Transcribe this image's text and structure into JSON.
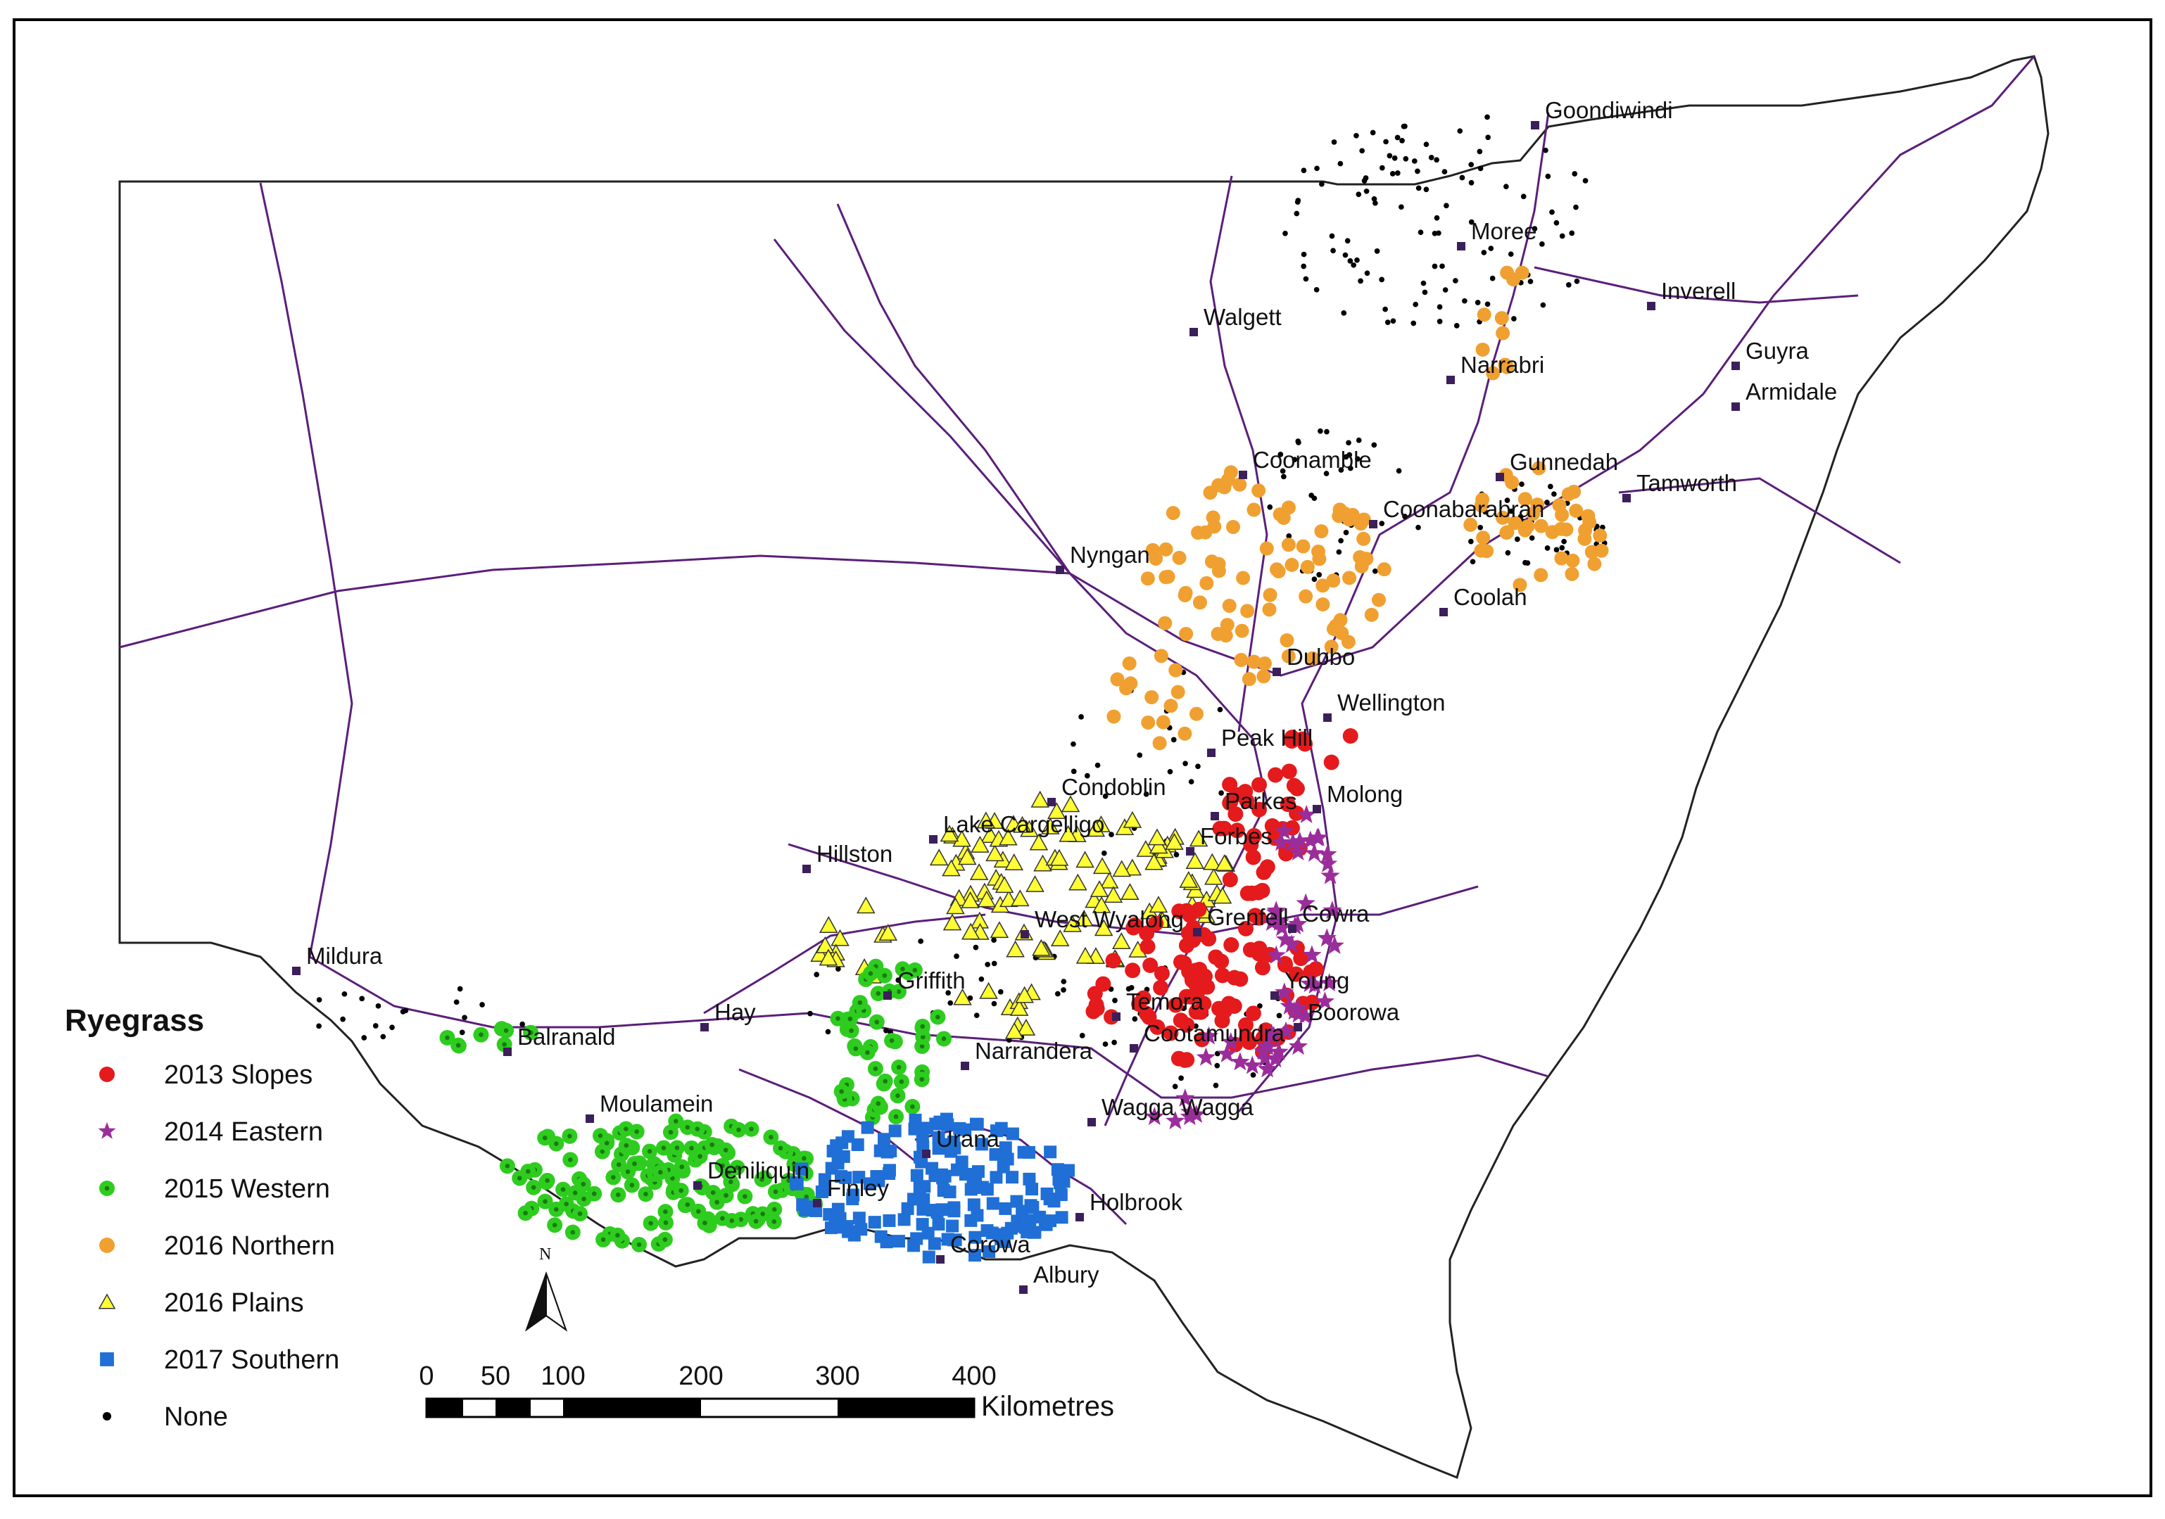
{
  "legend": {
    "title": "Ryegrass",
    "items": [
      {
        "label": "2013 Slopes",
        "symbol": "circle",
        "color": "#e41a1c"
      },
      {
        "label": "2014 Eastern",
        "symbol": "star",
        "color": "#9b2d9b"
      },
      {
        "label": "2015 Western",
        "symbol": "dotted-circle",
        "color": "#2ecc1f"
      },
      {
        "label": "2016 Northern",
        "symbol": "circle",
        "color": "#f0a030"
      },
      {
        "label": "2016 Plains",
        "symbol": "triangle",
        "color": "#ffff33"
      },
      {
        "label": "2017 Southern",
        "symbol": "square",
        "color": "#1f6fd6"
      },
      {
        "label": "None",
        "symbol": "dot",
        "color": "#000000"
      }
    ]
  },
  "scale_bar": {
    "ticks": [
      "0",
      "50",
      "100",
      "200",
      "300",
      "400"
    ],
    "unit": "Kilometres"
  },
  "north_arrow": {
    "letter": "N"
  },
  "towns": [
    "Goondiwindi",
    "Moree",
    "Inverell",
    "Walgett",
    "Narrabri",
    "Guyra",
    "Armidale",
    "Coonamble",
    "Gunnedah",
    "Tamworth",
    "Coonabarabran",
    "Nyngan",
    "Coolah",
    "Dubbo",
    "Wellington",
    "Peak Hill",
    "Condoblin",
    "Parkes",
    "Molong",
    "Lake Cargelligo",
    "Forbes",
    "Hillston",
    "Cowra",
    "West Wyalong",
    "Grenfell",
    "Mildura",
    "Griffith",
    "Young",
    "Hay",
    "Temora",
    "Boorowa",
    "Balranald",
    "Narrandera",
    "Cootamundra",
    "Wagga Wagga",
    "Moulamein",
    "Urana",
    "Deniliquin",
    "Holbrook",
    "Finley",
    "Corowa",
    "Albury"
  ],
  "colors": {
    "roads": "#5b1f7a",
    "boundary": "#222222",
    "frame": "#000000"
  }
}
